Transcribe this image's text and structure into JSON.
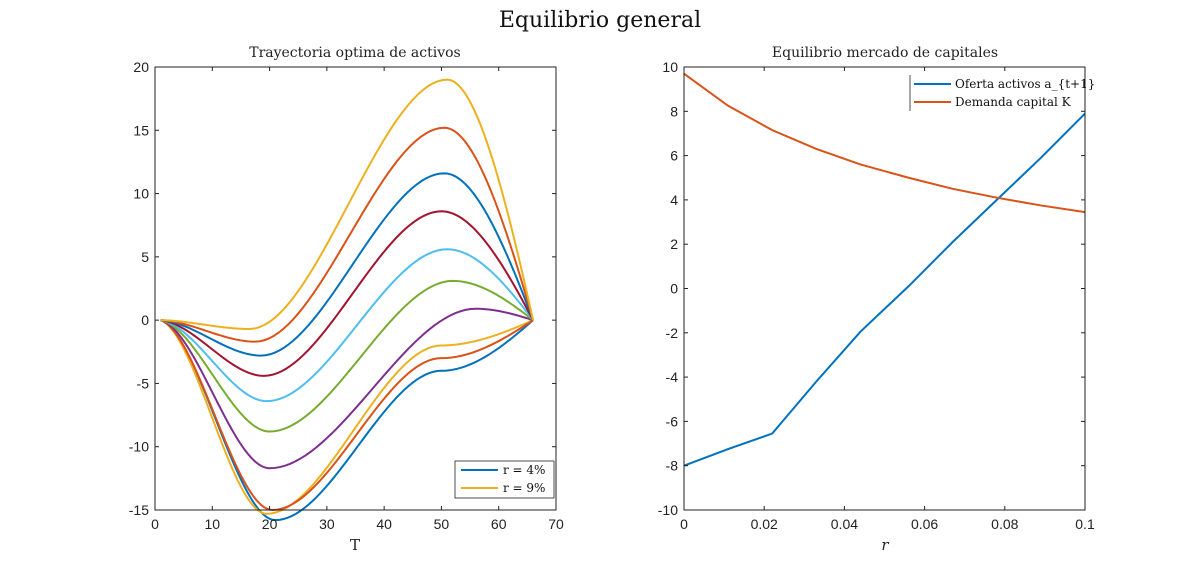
{
  "figure_title": "Equilibrio general",
  "chart_data": [
    {
      "type": "line",
      "title": "Trayectoria optima de activos",
      "xlabel": "T",
      "ylabel": "",
      "xlim": [
        0,
        70
      ],
      "ylim": [
        -15,
        20
      ],
      "xticks": [
        0,
        10,
        20,
        30,
        40,
        50,
        60,
        70
      ],
      "yticks": [
        -15,
        -10,
        -5,
        0,
        5,
        10,
        15,
        20
      ],
      "legend": {
        "position": "bottom-right",
        "entries": [
          "r = 4%",
          "r = 9%"
        ]
      },
      "curve_family": {
        "x_start": 1,
        "x_end": 66,
        "curves": [
          {
            "color": "#0072BD",
            "trough": [
              21,
              -15.8
            ],
            "peak": [
              50,
              -4.0
            ]
          },
          {
            "color": "#EDB120",
            "trough": [
              19.5,
              -15.3
            ],
            "peak": [
              50,
              -2.0
            ]
          },
          {
            "color": "#D95319",
            "trough": [
              20.5,
              -15.0
            ],
            "peak": [
              50,
              -3.0
            ]
          },
          {
            "color": "#7E2F8E",
            "trough": [
              20,
              -11.7
            ],
            "peak": [
              56,
              0.9
            ]
          },
          {
            "color": "#77AC30",
            "trough": [
              20,
              -8.8
            ],
            "peak": [
              52,
              3.1
            ]
          },
          {
            "color": "#4DBEEE",
            "trough": [
              19.5,
              -6.4
            ],
            "peak": [
              51,
              5.6
            ]
          },
          {
            "color": "#A2142F",
            "trough": [
              19,
              -4.4
            ],
            "peak": [
              50,
              8.6
            ]
          },
          {
            "color": "#0072BD",
            "trough": [
              18.5,
              -2.8
            ],
            "peak": [
              50.5,
              11.6
            ]
          },
          {
            "color": "#D95319",
            "trough": [
              17.5,
              -1.7
            ],
            "peak": [
              50.5,
              15.2
            ]
          },
          {
            "color": "#EDB120",
            "trough": [
              16.5,
              -0.7
            ],
            "peak": [
              51,
              19.0
            ]
          }
        ]
      }
    },
    {
      "type": "line",
      "title": "Equilibrio mercado de capitales",
      "xlabel": "r",
      "ylabel": "",
      "xlim": [
        0,
        0.1
      ],
      "ylim": [
        -10,
        10
      ],
      "xticks": [
        0,
        0.02,
        0.04,
        0.06,
        0.08,
        0.1
      ],
      "yticks": [
        -10,
        -8,
        -6,
        -4,
        -2,
        0,
        2,
        4,
        6,
        8,
        10
      ],
      "legend": {
        "position": "top-right",
        "entries": [
          "Oferta activos a_{t+1}",
          "Demanda capital K"
        ]
      },
      "series": [
        {
          "name": "Oferta activos a_{t+1}",
          "color": "#0072BD",
          "x": [
            0,
            0.011,
            0.022,
            0.033,
            0.044,
            0.056,
            0.067,
            0.078,
            0.089,
            0.1
          ],
          "y": [
            -8.0,
            -7.25,
            -6.55,
            -4.2,
            -1.95,
            0.1,
            2.1,
            4.0,
            5.9,
            7.9
          ]
        },
        {
          "name": "Demanda capital K",
          "color": "#D95319",
          "x": [
            0,
            0.011,
            0.022,
            0.033,
            0.044,
            0.056,
            0.067,
            0.078,
            0.089,
            0.1
          ],
          "y": [
            9.7,
            8.25,
            7.15,
            6.3,
            5.6,
            5.0,
            4.5,
            4.1,
            3.75,
            3.45
          ]
        }
      ]
    }
  ]
}
